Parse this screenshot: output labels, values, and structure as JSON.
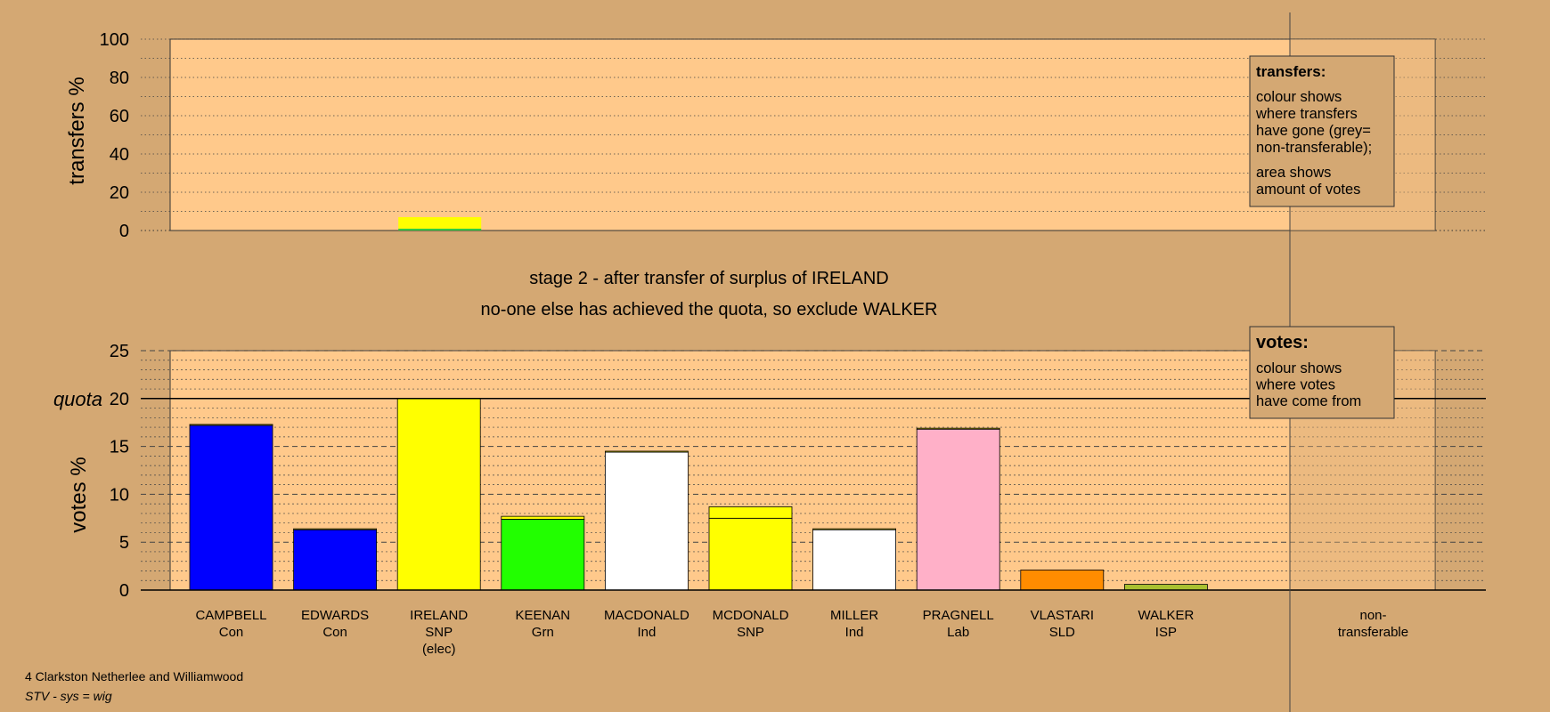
{
  "chart_data": [
    {
      "type": "bar",
      "ylabel": "transfers %",
      "ylim": [
        0,
        100
      ],
      "yticks": [
        0,
        20,
        40,
        60,
        80,
        100
      ],
      "grid": true,
      "marks": [
        {
          "category": "IRELAND",
          "bottom": 0,
          "top": 1,
          "color": "#2ecc40"
        },
        {
          "category": "IRELAND",
          "bottom": 1,
          "top": 7,
          "color": "#ffff00"
        }
      ],
      "legend": {
        "position": "top-right",
        "title": "transfers:",
        "lines1": [
          "colour shows",
          "where transfers",
          "have gone (grey=",
          "non-transferable);"
        ],
        "lines2": [
          "area shows",
          "amount of votes"
        ]
      }
    },
    {
      "type": "bar",
      "ylabel": "votes %",
      "ylim": [
        0,
        25
      ],
      "yticks": [
        0,
        5,
        10,
        15,
        20,
        25
      ],
      "quota": {
        "label": "quota",
        "value": 20
      },
      "grid": true,
      "categories": [
        {
          "name": "CAMPBELL",
          "party": "Con",
          "note": ""
        },
        {
          "name": "EDWARDS",
          "party": "Con",
          "note": ""
        },
        {
          "name": "IRELAND",
          "party": "SNP",
          "note": "(elec)"
        },
        {
          "name": "KEENAN",
          "party": "Grn",
          "note": ""
        },
        {
          "name": "MACDONALD",
          "party": "Ind",
          "note": ""
        },
        {
          "name": "MCDONALD",
          "party": "SNP",
          "note": ""
        },
        {
          "name": "MILLER",
          "party": "Ind",
          "note": ""
        },
        {
          "name": "PRAGNELL",
          "party": "Lab",
          "note": ""
        },
        {
          "name": "VLASTARI",
          "party": "SLD",
          "note": ""
        },
        {
          "name": "WALKER",
          "party": "ISP",
          "note": ""
        }
      ],
      "nontransferable_label": [
        "non-",
        "transferable"
      ],
      "bars": [
        {
          "category": "CAMPBELL",
          "segments": [
            {
              "value": 17.2,
              "color": "#0000ff"
            },
            {
              "value": 0.1,
              "color": "#ffff00"
            }
          ]
        },
        {
          "category": "EDWARDS",
          "segments": [
            {
              "value": 6.3,
              "color": "#0000ff"
            },
            {
              "value": 0.1,
              "color": "#ffff00"
            }
          ]
        },
        {
          "category": "IRELAND",
          "segments": [
            {
              "value": 20.0,
              "color": "#ffff00"
            }
          ]
        },
        {
          "category": "KEENAN",
          "segments": [
            {
              "value": 7.4,
              "color": "#22ff00"
            },
            {
              "value": 0.3,
              "color": "#ffff00"
            }
          ]
        },
        {
          "category": "MACDONALD",
          "segments": [
            {
              "value": 14.4,
              "color": "#ffffff"
            },
            {
              "value": 0.1,
              "color": "#ffff00"
            }
          ]
        },
        {
          "category": "MCDONALD",
          "segments": [
            {
              "value": 7.5,
              "color": "#ffff00"
            },
            {
              "value": 1.2,
              "color": "#ffff00"
            }
          ]
        },
        {
          "category": "MILLER",
          "segments": [
            {
              "value": 6.3,
              "color": "#ffffff"
            },
            {
              "value": 0.1,
              "color": "#ffff00"
            }
          ]
        },
        {
          "category": "PRAGNELL",
          "segments": [
            {
              "value": 16.8,
              "color": "#ffb0c8"
            },
            {
              "value": 0.1,
              "color": "#ffff00"
            }
          ]
        },
        {
          "category": "VLASTARI",
          "segments": [
            {
              "value": 2.1,
              "color": "#ff8c00"
            }
          ]
        },
        {
          "category": "WALKER",
          "segments": [
            {
              "value": 0.6,
              "color": "#a8c030"
            }
          ]
        }
      ],
      "legend": {
        "position": "top-right",
        "title": "votes:",
        "lines": [
          "colour shows",
          "where votes",
          "have come from"
        ]
      }
    }
  ],
  "stage": {
    "line1": "stage 2 - after transfer of surplus of IRELAND",
    "line2": "no-one else has achieved the quota, so exclude WALKER"
  },
  "footer": {
    "line1": "4 Clarkston Netherlee and Williamwood",
    "line2": "STV - sys = wig"
  },
  "colors": {
    "background": "#d4a873",
    "plot": "#ffc98b",
    "nontransferable_shade": "#d4a873"
  }
}
